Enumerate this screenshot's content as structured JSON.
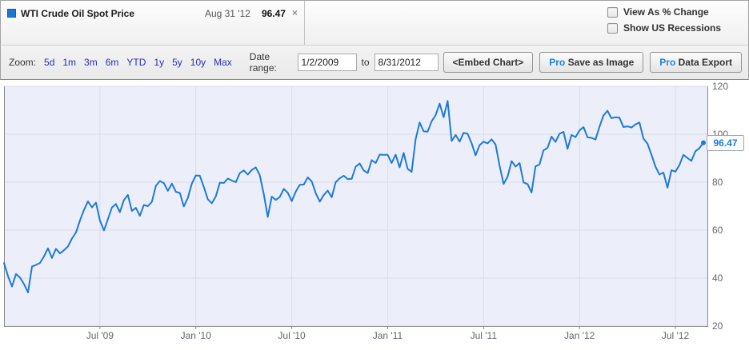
{
  "header": {
    "series": {
      "name": "WTI Crude Oil Spot Price",
      "date": "Aug 31 '12",
      "value": "96.47",
      "close_glyph": "×"
    },
    "options": [
      {
        "label": "View As % Change",
        "checked": false
      },
      {
        "label": "Show US Recessions",
        "checked": false
      }
    ]
  },
  "toolbar": {
    "zoom_label": "Zoom:",
    "zoom_options": [
      "5d",
      "1m",
      "3m",
      "6m",
      "YTD",
      "1y",
      "5y",
      "10y",
      "Max"
    ],
    "date_range_label": "Date range:",
    "date_from": "1/2/2009",
    "to_label": "to",
    "date_to": "8/31/2012",
    "buttons": [
      {
        "pro": false,
        "label": "<Embed Chart>"
      },
      {
        "pro": true,
        "pro_label": "Pro",
        "label": "Save as Image"
      },
      {
        "pro": true,
        "pro_label": "Pro",
        "label": "Data Export"
      }
    ]
  },
  "chart_data": {
    "type": "line",
    "title": "WTI Crude Oil Spot Price",
    "x_unit": "months since Jan 2009",
    "months_span": 44,
    "xlim": [
      0,
      44
    ],
    "ylim": [
      20,
      120
    ],
    "grid": true,
    "legend_position": "none",
    "x_tick_positions": [
      6,
      12,
      18,
      24,
      30,
      36,
      42
    ],
    "x_tick_labels": [
      "Jul '09",
      "Jan '10",
      "Jul '10",
      "Jan '11",
      "Jul '11",
      "Jan '12",
      "Jul '12"
    ],
    "y_ticks": [
      20,
      40,
      60,
      80,
      100,
      120
    ],
    "line_color": "#1e7ad6",
    "plot_bg": "#eceffa",
    "grid_color": "#d9dce8",
    "axis_color": "#8a8a8a",
    "tick_label_color": "#65656f",
    "last_value_label": "96.47",
    "last_value": 96.47,
    "values": [
      46.3,
      40.8,
      36.5,
      41.7,
      40.2,
      37.5,
      34.0,
      44.8,
      45.5,
      46.3,
      49.0,
      52.4,
      48.4,
      52.2,
      50.3,
      51.6,
      53.2,
      56.5,
      59.0,
      64.0,
      68.4,
      72.0,
      69.5,
      71.5,
      64.0,
      59.9,
      64.6,
      69.4,
      70.9,
      67.5,
      72.5,
      74.7,
      68.0,
      69.3,
      66.0,
      70.5,
      70.0,
      71.8,
      78.5,
      80.5,
      79.6,
      76.4,
      79.4,
      76.0,
      75.5,
      69.9,
      73.4,
      79.4,
      82.8,
      82.7,
      78.0,
      72.9,
      71.2,
      74.1,
      79.8,
      79.7,
      81.5,
      80.7,
      80.0,
      83.8,
      84.9,
      83.2,
      85.1,
      86.2,
      83.0,
      75.1,
      65.5,
      74.0,
      72.6,
      73.8,
      77.2,
      75.6,
      72.1,
      76.1,
      78.9,
      79.0,
      82.0,
      80.3,
      75.4,
      71.9,
      74.6,
      76.5,
      73.7,
      80.0,
      81.6,
      82.7,
      81.3,
      81.4,
      86.5,
      87.8,
      84.9,
      83.8,
      89.2,
      88.0,
      91.5,
      91.4,
      91.4,
      88.0,
      91.5,
      86.2,
      92.2,
      85.6,
      84.3,
      97.9,
      104.9,
      101.2,
      101.1,
      105.4,
      108.0,
      112.8,
      107.1,
      113.9,
      97.2,
      99.7,
      96.9,
      100.6,
      100.2,
      96.3,
      91.2,
      95.4,
      96.9,
      96.2,
      97.9,
      95.7,
      86.9,
      79.3,
      82.3,
      88.8,
      86.5,
      88.0,
      79.9,
      79.2,
      75.7,
      86.6,
      87.4,
      93.3,
      94.3,
      99.0,
      96.8,
      100.2,
      101.0,
      93.9,
      99.7,
      98.8,
      101.6,
      103.0,
      98.7,
      98.5,
      97.8,
      103.2,
      107.8,
      109.8,
      106.7,
      107.1,
      106.9,
      103.0,
      103.3,
      102.8,
      104.1,
      104.9,
      98.2,
      96.1,
      91.5,
      86.5,
      83.2,
      84.0,
      77.7,
      85.0,
      84.4,
      87.1,
      91.4,
      90.1,
      88.9,
      92.9,
      94.2,
      96.47
    ]
  }
}
